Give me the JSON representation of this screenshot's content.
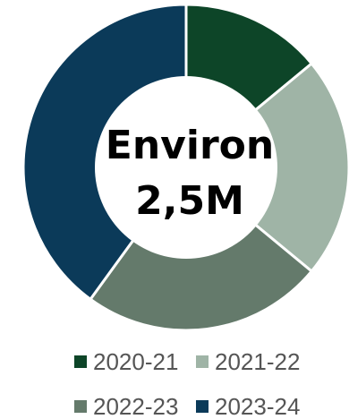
{
  "chart_data": {
    "type": "pie",
    "donut": true,
    "center_label": [
      "Environ",
      "2,5M"
    ],
    "categories": [
      "2020-21",
      "2021-22",
      "2022-23",
      "2023-24"
    ],
    "values": [
      14,
      22,
      24,
      40
    ],
    "colors": [
      "#0d4528",
      "#9fb4a6",
      "#647a6b",
      "#0b3a59"
    ],
    "legend": {
      "placement": "bottom",
      "entries": [
        "2020-21",
        "2021-22",
        "2022-23",
        "2023-24"
      ]
    }
  }
}
